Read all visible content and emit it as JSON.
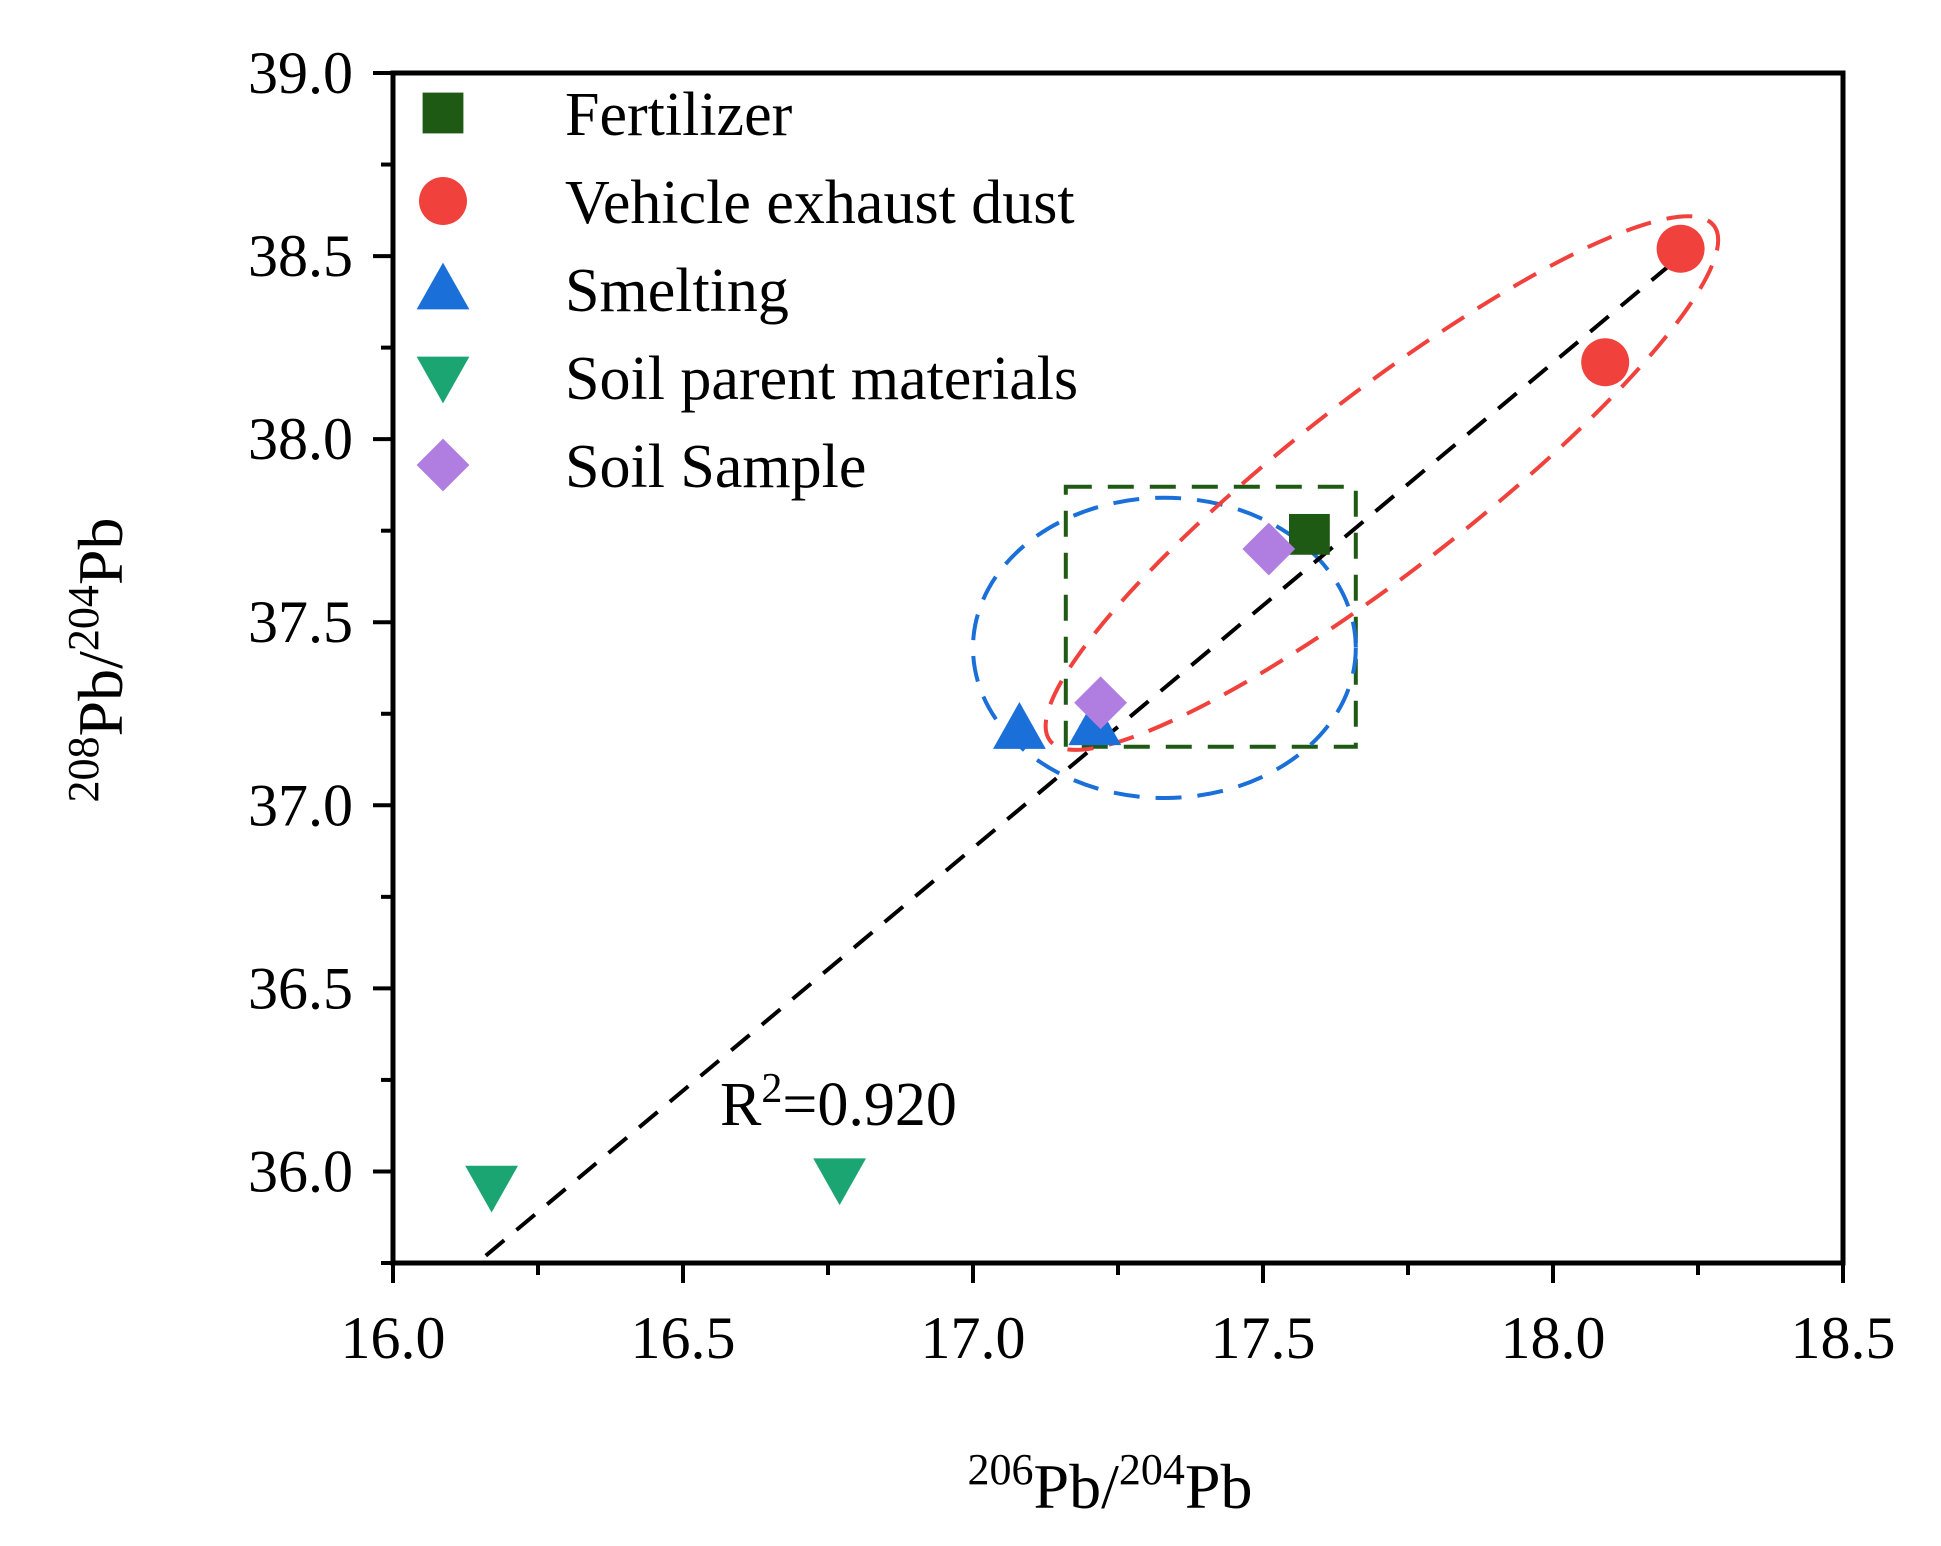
{
  "chart_data": {
    "type": "scatter",
    "title": "",
    "xlabel": {
      "sup1": "206",
      "base1": "Pb/",
      "sup2": "204",
      "base2": "Pb"
    },
    "ylabel": {
      "sup1": "208",
      "base1": "Pb/",
      "sup2": "204",
      "base2": "Pb"
    },
    "xlim": [
      16.0,
      18.5
    ],
    "ylim": [
      35.75,
      39.0
    ],
    "x_ticks": [
      "16.0",
      "16.5",
      "17.0",
      "17.5",
      "18.0",
      "18.5"
    ],
    "y_ticks": [
      "36.0",
      "36.5",
      "37.0",
      "37.5",
      "38.0",
      "38.5",
      "39.0"
    ],
    "legend_position": "top-left",
    "series": [
      {
        "name": "Fertilizer",
        "marker": "square",
        "color": "#1e5a14",
        "points": [
          [
            17.58,
            37.74
          ]
        ]
      },
      {
        "name": "Vehicle exhaust dust",
        "marker": "circle",
        "color": "#f0413c",
        "points": [
          [
            18.09,
            38.21
          ],
          [
            18.22,
            38.52
          ]
        ]
      },
      {
        "name": "Smelting",
        "marker": "triangle-up",
        "color": "#1a6fd8",
        "points": [
          [
            17.08,
            37.21
          ],
          [
            17.21,
            37.22
          ]
        ]
      },
      {
        "name": "Soil parent materials",
        "marker": "triangle-down",
        "color": "#1aa572",
        "points": [
          [
            16.17,
            35.96
          ],
          [
            16.77,
            35.98
          ]
        ]
      },
      {
        "name": "Soil Sample",
        "marker": "diamond",
        "color": "#b07ee0",
        "points": [
          [
            17.22,
            37.28
          ],
          [
            17.51,
            37.7
          ]
        ]
      }
    ],
    "trend_line": {
      "x": [
        16.16,
        18.22
      ],
      "y": [
        35.77,
        38.5
      ],
      "r2_label": {
        "base": "R",
        "sup": "2",
        "rest": "=0.920"
      }
    },
    "groups": [
      {
        "name": "fertilizer-box",
        "shape": "rect",
        "color": "#1e5a14",
        "x_range": [
          17.16,
          17.66
        ],
        "y_range": [
          37.16,
          37.87
        ]
      },
      {
        "name": "smelting-ellipse",
        "shape": "ellipse",
        "color": "#1a6fd8",
        "center": [
          17.33,
          37.43
        ],
        "radii": [
          0.33,
          0.41
        ]
      },
      {
        "name": "exhaust-ellipse",
        "shape": "rotated-ellipse",
        "color": "#f0413c",
        "from": [
          17.16,
          37.21
        ],
        "to": [
          18.25,
          38.55
        ],
        "half_width": 0.16
      }
    ]
  }
}
